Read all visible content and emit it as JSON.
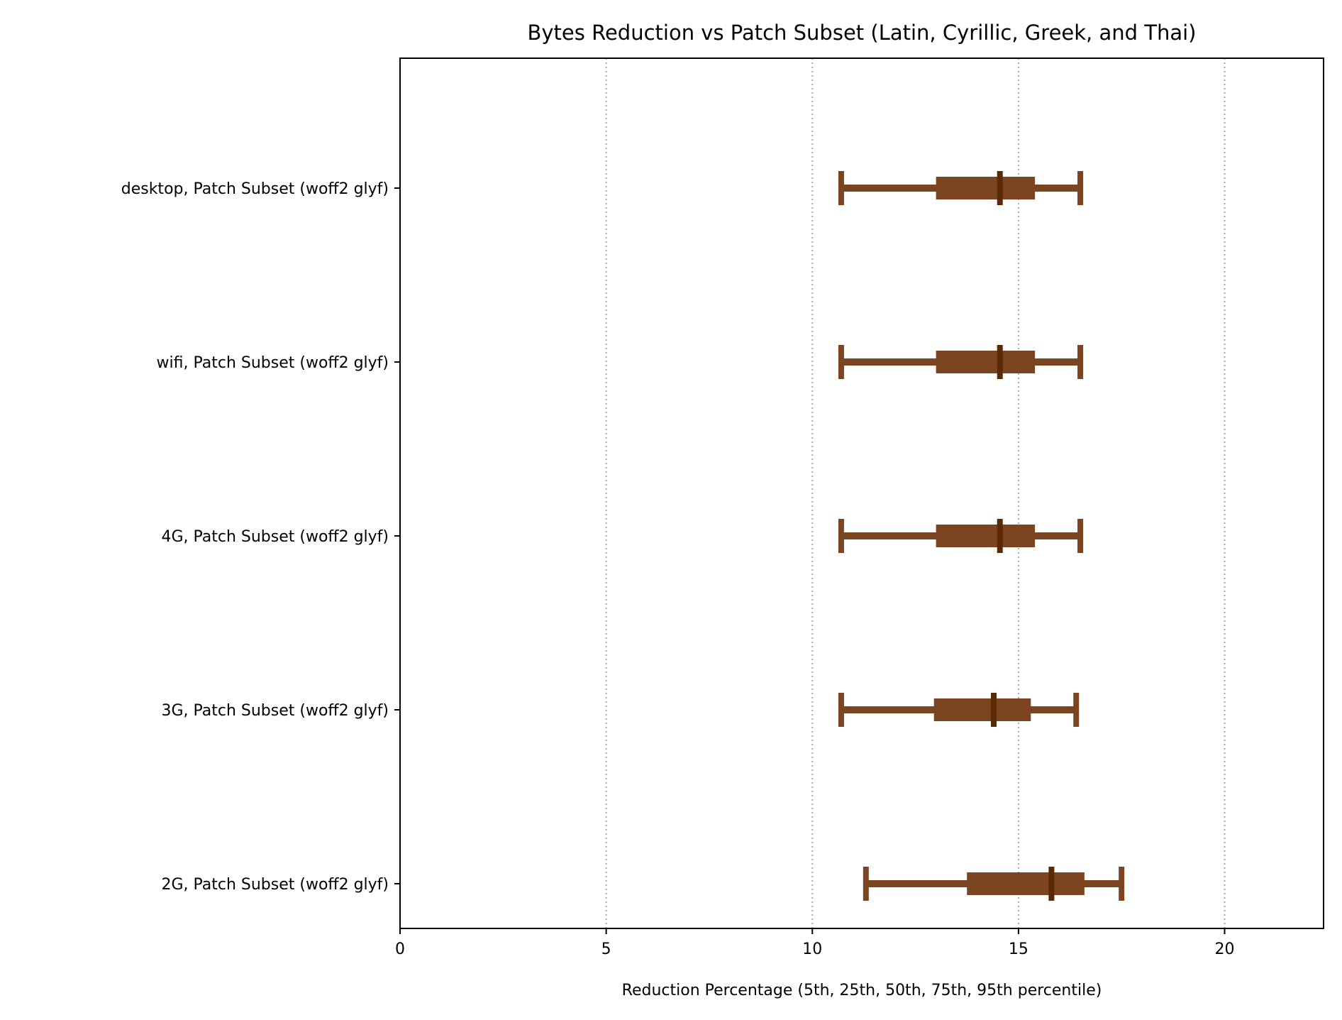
{
  "chart_data": {
    "type": "box",
    "title": "Bytes Reduction vs Patch Subset (Latin, Cyrillic, Greek, and Thai)",
    "xlabel": "Reduction Percentage  (5th, 25th, 50th, 75th, 95th percentile)",
    "ylabel": "",
    "xlim": [
      0,
      22.4
    ],
    "xticks": [
      0,
      5,
      10,
      15,
      20
    ],
    "grid": "x-dotted",
    "colors": {
      "box": "#7a4520",
      "median": "#5a2a05",
      "grid": "#aaaaaa"
    },
    "categories": [
      "desktop, Patch Subset (woff2 glyf)",
      "wifi, Patch Subset (woff2 glyf)",
      "4G, Patch Subset (woff2 glyf)",
      "3G, Patch Subset (woff2 glyf)",
      "2G, Patch Subset (woff2 glyf)"
    ],
    "series": [
      {
        "category": "desktop, Patch Subset (woff2 glyf)",
        "p5": 10.7,
        "p25": 13.0,
        "p50": 14.55,
        "p75": 15.4,
        "p95": 16.5
      },
      {
        "category": "wifi, Patch Subset (woff2 glyf)",
        "p5": 10.7,
        "p25": 13.0,
        "p50": 14.55,
        "p75": 15.4,
        "p95": 16.5
      },
      {
        "category": "4G, Patch Subset (woff2 glyf)",
        "p5": 10.7,
        "p25": 13.0,
        "p50": 14.55,
        "p75": 15.4,
        "p95": 16.5
      },
      {
        "category": "3G, Patch Subset (woff2 glyf)",
        "p5": 10.7,
        "p25": 12.95,
        "p50": 14.4,
        "p75": 15.3,
        "p95": 16.4
      },
      {
        "category": "2G, Patch Subset (woff2 glyf)",
        "p5": 11.3,
        "p25": 13.75,
        "p50": 15.8,
        "p75": 16.6,
        "p95": 17.5
      }
    ]
  }
}
